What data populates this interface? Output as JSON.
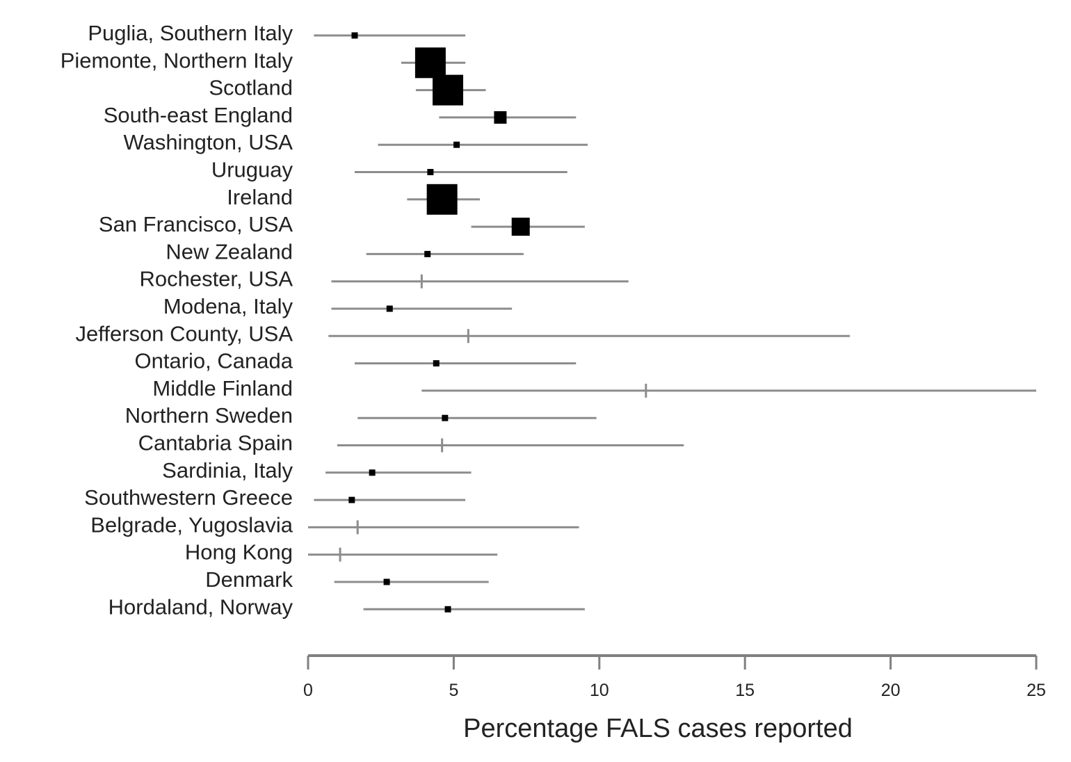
{
  "chart_data": {
    "type": "forest",
    "title": "",
    "xlabel": "Percentage FALS cases reported",
    "ylabel": "",
    "xlim": [
      0,
      25
    ],
    "xticks": [
      0,
      5,
      10,
      15,
      20,
      25
    ],
    "grid": false,
    "legend": "none",
    "studies": [
      {
        "name": "Puglia, Southern Italy",
        "estimate": 1.6,
        "lower": 0.2,
        "upper": 5.4,
        "weight": 1
      },
      {
        "name": "Piemonte, Northern Italy",
        "estimate": 4.2,
        "lower": 3.2,
        "upper": 5.4,
        "weight": 5
      },
      {
        "name": "Scotland",
        "estimate": 4.8,
        "lower": 3.7,
        "upper": 6.1,
        "weight": 5
      },
      {
        "name": "South-east England",
        "estimate": 6.6,
        "lower": 4.5,
        "upper": 9.2,
        "weight": 2
      },
      {
        "name": "Washington, USA",
        "estimate": 5.1,
        "lower": 2.4,
        "upper": 9.6,
        "weight": 1
      },
      {
        "name": "Uruguay",
        "estimate": 4.2,
        "lower": 1.6,
        "upper": 8.9,
        "weight": 1
      },
      {
        "name": "Ireland",
        "estimate": 4.6,
        "lower": 3.4,
        "upper": 5.9,
        "weight": 5
      },
      {
        "name": "San Francisco, USA",
        "estimate": 7.3,
        "lower": 5.6,
        "upper": 9.5,
        "weight": 3
      },
      {
        "name": "New Zealand",
        "estimate": 4.1,
        "lower": 2.0,
        "upper": 7.4,
        "weight": 1
      },
      {
        "name": "Rochester, USA",
        "estimate": 3.9,
        "lower": 0.8,
        "upper": 11.0,
        "weight": 0
      },
      {
        "name": "Modena, Italy",
        "estimate": 2.8,
        "lower": 0.8,
        "upper": 7.0,
        "weight": 1
      },
      {
        "name": "Jefferson County, USA",
        "estimate": 5.5,
        "lower": 0.7,
        "upper": 18.6,
        "weight": 0
      },
      {
        "name": "Ontario, Canada",
        "estimate": 4.4,
        "lower": 1.6,
        "upper": 9.2,
        "weight": 1
      },
      {
        "name": "Middle Finland",
        "estimate": 11.6,
        "lower": 3.9,
        "upper": 25.0,
        "weight": 0
      },
      {
        "name": "Northern Sweden",
        "estimate": 4.7,
        "lower": 1.7,
        "upper": 9.9,
        "weight": 1
      },
      {
        "name": "Cantabria Spain",
        "estimate": 4.6,
        "lower": 1.0,
        "upper": 12.9,
        "weight": 0
      },
      {
        "name": "Sardinia, Italy",
        "estimate": 2.2,
        "lower": 0.6,
        "upper": 5.6,
        "weight": 1
      },
      {
        "name": "Southwestern Greece",
        "estimate": 1.5,
        "lower": 0.2,
        "upper": 5.4,
        "weight": 1
      },
      {
        "name": "Belgrade, Yugoslavia",
        "estimate": 1.7,
        "lower": 0.0,
        "upper": 9.3,
        "weight": 0
      },
      {
        "name": "Hong Kong",
        "estimate": 1.1,
        "lower": 0.0,
        "upper": 6.5,
        "weight": 0
      },
      {
        "name": "Denmark",
        "estimate": 2.7,
        "lower": 0.9,
        "upper": 6.2,
        "weight": 1
      },
      {
        "name": "Hordaland, Norway",
        "estimate": 4.8,
        "lower": 1.9,
        "upper": 9.5,
        "weight": 1
      }
    ]
  },
  "colors": {
    "ci_line": "#8c8c8c",
    "marker": "#000000",
    "axis": "#808080",
    "text": "#222222"
  }
}
